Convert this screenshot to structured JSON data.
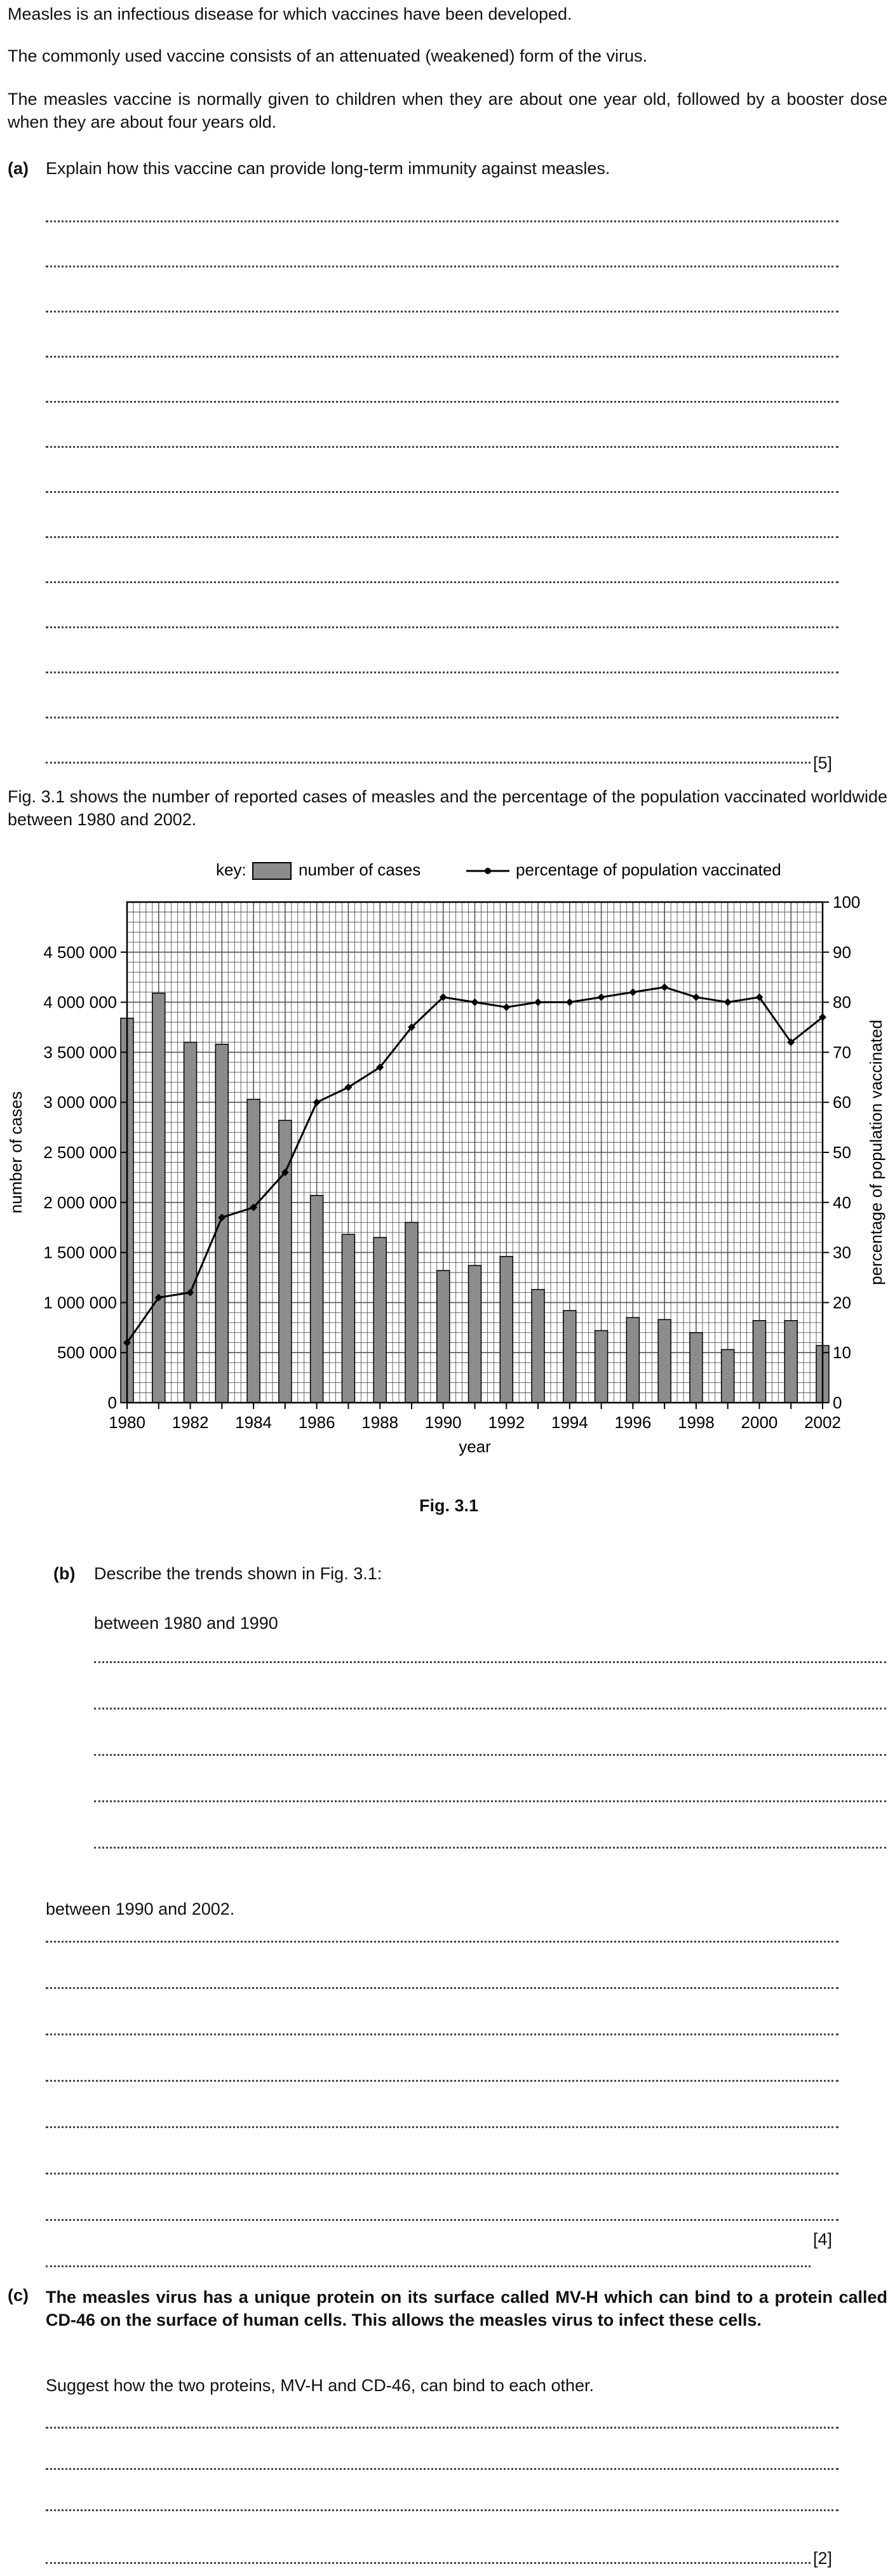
{
  "intro": {
    "p1": "Measles is an infectious disease for which vaccines have been developed.",
    "p2": "The commonly used vaccine consists of an attenuated (weakened) form of the virus.",
    "p3": "The measles vaccine is normally given to children when they are about one year old, followed by a booster dose when they are about four years old."
  },
  "question_a": {
    "label": "(a)",
    "text": "Explain how this vaccine can provide long-term immunity against measles.",
    "marks": "[5]"
  },
  "figure_intro": "Fig. 3.1 shows the number of reported cases of measles and the percentage of the population vaccinated worldwide between 1980 and 2002.",
  "chart_data": {
    "type": "bar+line",
    "key_label": "key:",
    "x": [
      1980,
      1981,
      1982,
      1983,
      1984,
      1985,
      1986,
      1987,
      1988,
      1989,
      1990,
      1991,
      1992,
      1993,
      1994,
      1995,
      1996,
      1997,
      1998,
      1999,
      2000,
      2001,
      2002
    ],
    "x_tick_labels": [
      "1980",
      "1982",
      "1984",
      "1986",
      "1988",
      "1990",
      "1992",
      "1994",
      "1996",
      "1998",
      "2000",
      "2002"
    ],
    "xlabel": "year",
    "series": [
      {
        "name": "number of cases",
        "kind": "bar",
        "axis": "left",
        "values": [
          3840000,
          4090000,
          3600000,
          3580000,
          3030000,
          2820000,
          2070000,
          1680000,
          1650000,
          1800000,
          1320000,
          1370000,
          1460000,
          1130000,
          920000,
          720000,
          850000,
          830000,
          700000,
          530000,
          820000,
          820000,
          570000
        ]
      },
      {
        "name": "percentage of population vaccinated",
        "kind": "line",
        "axis": "right",
        "values": [
          12,
          21,
          22,
          37,
          39,
          46,
          60,
          63,
          67,
          75,
          81,
          80,
          79,
          80,
          80,
          81,
          82,
          83,
          81,
          80,
          81,
          72,
          77
        ]
      }
    ],
    "left_axis": {
      "label": "number of cases",
      "ylim": [
        0,
        5000000
      ],
      "tick_labels": [
        "0",
        "500 000",
        "1 000 000",
        "1 500 000",
        "2 000 000",
        "2 500 000",
        "3 000 000",
        "3 500 000",
        "4 000 000",
        "4 500 000"
      ]
    },
    "right_axis": {
      "label": "percentage of population vaccinated",
      "ylim": [
        0,
        100
      ],
      "tick_labels": [
        "0",
        "10",
        "20",
        "30",
        "40",
        "50",
        "60",
        "70",
        "80",
        "90",
        "100"
      ]
    },
    "grid": true,
    "legend": "top",
    "caption": "Fig. 3.1",
    "colors": {
      "bar": "#8c8c8c",
      "line": "#000000",
      "grid": "#555555"
    }
  },
  "question_b": {
    "label": "(b)",
    "text": "Describe the trends shown in Fig. 3.1:",
    "part1": "between 1980 and 1990",
    "part2": "between 1990 and 2002.",
    "marks": "[4]"
  },
  "question_c": {
    "label": "(c)",
    "text": "The measles virus has a unique protein on its surface called MV-H which can bind to a protein called CD-46 on the surface of human cells. This allows the measles virus to infect these cells.",
    "prompt": "Suggest how the two proteins, MV-H and CD-46, can bind to each other.",
    "marks": "[2]"
  }
}
